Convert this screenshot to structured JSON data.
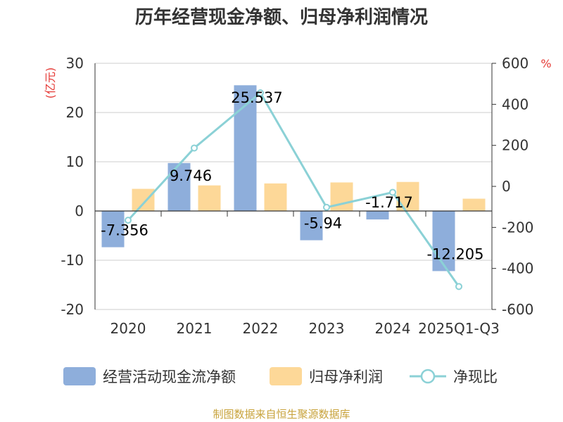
{
  "chart_data": {
    "type": "bar",
    "title": "历年经营现金净额、归母净利润情况",
    "categories": [
      "2020",
      "2021",
      "2022",
      "2023",
      "2024",
      "2025Q1-Q3"
    ],
    "left_unit": "(亿元)",
    "right_unit": "%",
    "left_ylim": [
      -20,
      30
    ],
    "left_ticks": [
      "30",
      "20",
      "10",
      "0",
      "-10",
      "-20"
    ],
    "right_ylim": [
      -600,
      600
    ],
    "right_ticks": [
      "600",
      "400",
      "200",
      "0",
      "-200",
      "-400",
      "-600"
    ],
    "grid": true,
    "legend_position": "bottom",
    "series": [
      {
        "name": "经营活动现金流净额",
        "kind": "bar",
        "axis": "left",
        "color": "#8eaedb",
        "values": [
          -7.356,
          9.746,
          25.537,
          -5.94,
          -1.717,
          -12.205
        ],
        "labels": [
          "-7.356",
          "9.746",
          "25.537",
          "-5.94",
          "-1.717",
          "-12.205"
        ]
      },
      {
        "name": "归母净利润",
        "kind": "bar",
        "axis": "left",
        "color": "#fdd898",
        "values": [
          4.5,
          5.2,
          5.6,
          5.8,
          5.9,
          2.5
        ]
      },
      {
        "name": "净现比",
        "kind": "line",
        "axis": "right",
        "color": "#8bd1d6",
        "values": [
          -165,
          187,
          456,
          -102,
          -29,
          -488
        ]
      }
    ],
    "source": "制图数据来自恒生聚源数据库"
  },
  "colors": {
    "title": "#333333",
    "unit": "#e53935",
    "source": "#c8a33c",
    "grid": "#cccccc",
    "axis": "#333333"
  }
}
